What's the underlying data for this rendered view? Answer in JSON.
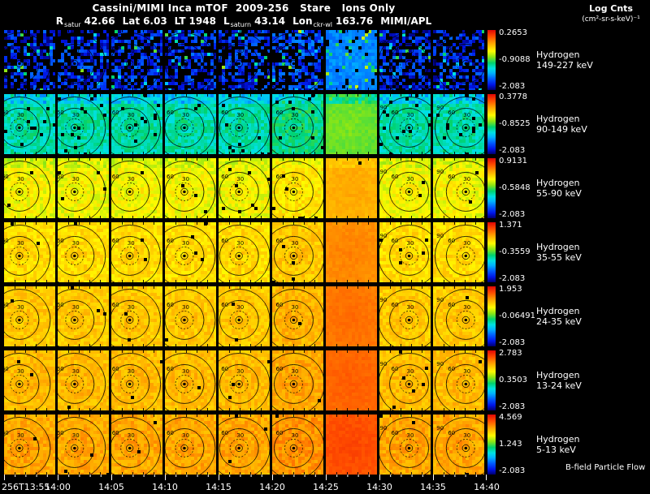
{
  "header": {
    "title": "Cassini/MIMI Inca mTOF  2009-256   Stare   Ions Only",
    "legend_title": "Log Cnts",
    "legend_units": "(cm²-sr-s-keV)⁻¹",
    "ephemeris": [
      {
        "label": "R",
        "sub": "satur",
        "value": "42.66"
      },
      {
        "label": "Lat",
        "sub": "",
        "value": "6.03"
      },
      {
        "label": "LT",
        "sub": "",
        "value": "1948"
      },
      {
        "label": "L",
        "sub": "saturn",
        "value": "43.14"
      },
      {
        "label": "Lon",
        "sub": "ckr-wl",
        "value": "163.76"
      },
      {
        "label": "MIMI/APL",
        "sub": "",
        "value": ""
      }
    ]
  },
  "footer": {
    "bfield_label": "B-field Particle Flow"
  },
  "chart_data": {
    "type": "heatmap",
    "title": "Cassini/MIMI Inca mTOF 2009-256 Stare Ions Only",
    "colorbar_label": "Log Cnts (cm²-sr-s-keV)⁻¹",
    "colormap": "rainbow",
    "columns": 9,
    "bright_column": 6,
    "time_ticks": [
      "256T13:55",
      "14:00",
      "14:05",
      "14:10",
      "14:15",
      "14:20",
      "14:25",
      "14:30",
      "14:35",
      "14:40"
    ],
    "contour_labels": [
      "30",
      "60",
      "90"
    ],
    "rows": [
      {
        "species": "Hydrogen",
        "energy": "149-227 keV",
        "scale_top": "0.2653",
        "scale_mid": "-0.9088",
        "scale_bottom": "-2.083",
        "render": {
          "level": 0.1,
          "noise": 0.1,
          "dropout": 0.45,
          "spikes": true,
          "top_fade": 0.0
        }
      },
      {
        "species": "Hydrogen",
        "energy": "90-149 keV",
        "scale_top": "0.3778",
        "scale_mid": "-0.8525",
        "scale_bottom": "-2.083",
        "render": {
          "level": 0.4,
          "noise": 0.055,
          "dropout": 0.03,
          "spikes": false,
          "top_fade": 0.14
        }
      },
      {
        "species": "Hydrogen",
        "energy": "55-90 keV",
        "scale_top": "0.9131",
        "scale_mid": "-0.5848",
        "scale_bottom": "-2.083",
        "render": {
          "level": 0.64,
          "noise": 0.05,
          "dropout": 0.012,
          "spikes": false,
          "top_fade": 0.05
        }
      },
      {
        "species": "Hydrogen",
        "energy": "35-55 keV",
        "scale_top": "1.371",
        "scale_mid": "-0.3559",
        "scale_bottom": "-2.083",
        "render": {
          "level": 0.69,
          "noise": 0.045,
          "dropout": 0.008,
          "spikes": false,
          "top_fade": 0.0
        }
      },
      {
        "species": "Hydrogen",
        "energy": "24-35 keV",
        "scale_top": "1.953",
        "scale_mid": "-0.06491",
        "scale_bottom": "-2.083",
        "render": {
          "level": 0.72,
          "noise": 0.04,
          "dropout": 0.006,
          "spikes": false,
          "top_fade": 0.0
        }
      },
      {
        "species": "Hydrogen",
        "energy": "13-24 keV",
        "scale_top": "2.783",
        "scale_mid": "0.3503",
        "scale_bottom": "-2.083",
        "render": {
          "level": 0.74,
          "noise": 0.04,
          "dropout": 0.006,
          "spikes": false,
          "top_fade": 0.0
        }
      },
      {
        "species": "Hydrogen",
        "energy": "5-13 keV",
        "scale_top": "4.569",
        "scale_mid": "1.243",
        "scale_bottom": "-2.083",
        "render": {
          "level": 0.77,
          "noise": 0.045,
          "dropout": 0.006,
          "spikes": false,
          "top_fade": 0.0
        }
      }
    ]
  }
}
